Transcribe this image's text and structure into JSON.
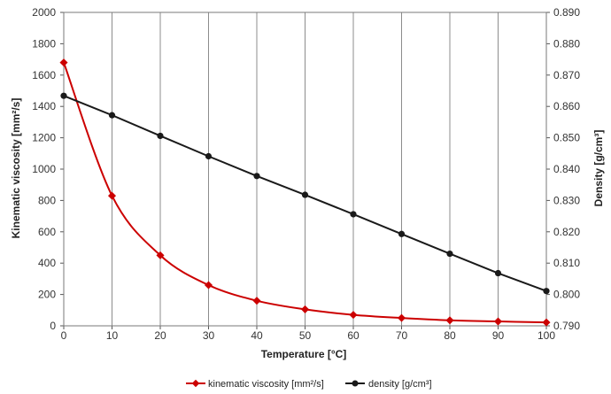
{
  "chart_data": {
    "type": "line",
    "title": "",
    "xlabel": "Temperature  [°C]",
    "ylabel": "Kinematic viscosity  [mm²/s]",
    "y2label": "Density  [g/cm³]",
    "x": [
      0,
      10,
      20,
      30,
      40,
      50,
      60,
      70,
      80,
      90,
      100
    ],
    "x_ticks": [
      "0",
      "10",
      "20",
      "30",
      "40",
      "50",
      "60",
      "70",
      "80",
      "90",
      "100"
    ],
    "xlim": [
      0,
      100
    ],
    "ylim": [
      0,
      2000
    ],
    "y2lim": [
      0.79,
      0.89
    ],
    "y_ticks": [
      "0",
      "200",
      "400",
      "600",
      "800",
      "1000",
      "1200",
      "1400",
      "1600",
      "1800",
      "2000"
    ],
    "y2_ticks": [
      "0.790",
      "0.800",
      "0.810",
      "0.820",
      "0.830",
      "0.840",
      "0.850",
      "0.860",
      "0.870",
      "0.880",
      "0.890"
    ],
    "grid": "vertical",
    "legend_position": "bottom",
    "series": [
      {
        "name": "kinematic viscosity [mm²/s]",
        "axis": "left",
        "color": "#cc0000",
        "marker": "diamond",
        "smooth": true,
        "values": [
          1680,
          830,
          450,
          260,
          160,
          105,
          70,
          50,
          35,
          28,
          22
        ]
      },
      {
        "name": "density [g/cm³]",
        "axis": "right",
        "color": "#1a1a1a",
        "marker": "circle",
        "smooth": false,
        "values": [
          0.8634,
          0.8572,
          0.8506,
          0.8441,
          0.8378,
          0.8318,
          0.8256,
          0.8193,
          0.813,
          0.8068,
          0.8011
        ]
      }
    ]
  }
}
